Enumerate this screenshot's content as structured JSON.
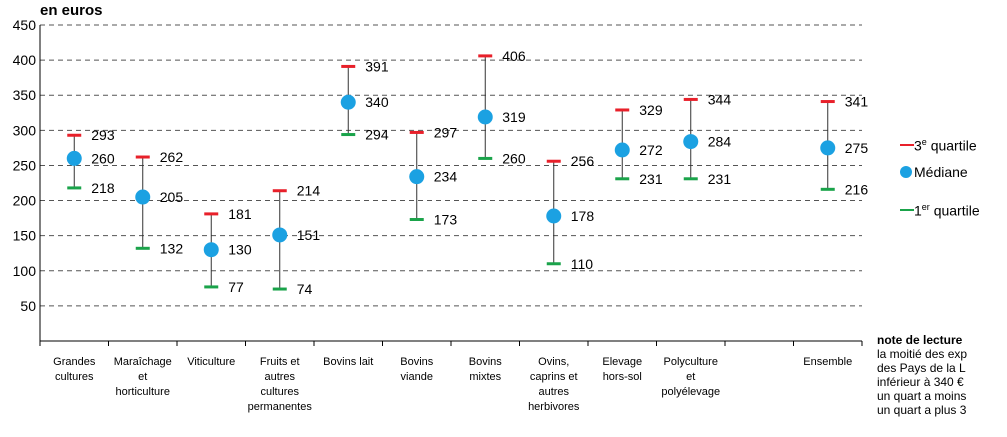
{
  "unit_label": "en euros",
  "colors": {
    "q3": "#e8202a",
    "median": "#1ba1e2",
    "q1": "#1aa34a",
    "whisker": "#333333",
    "grid": "#555555"
  },
  "legend": {
    "q3_label": "3",
    "q3_sup": "e",
    "q3_suffix": " quartile",
    "median_label": "Médiane",
    "q1_label": "1",
    "q1_sup": "er",
    "q1_suffix": " quartile"
  },
  "note": {
    "title": "note de lecture",
    "lines": [
      "la moitié des exp",
      "des Pays de la L",
      "inférieur à 340 €",
      "un quart a moins",
      "un quart a plus 3"
    ]
  },
  "chart_data": {
    "type": "boxplot",
    "ylabel": "en euros",
    "ylim": [
      0,
      450
    ],
    "yticks": [
      50,
      100,
      150,
      200,
      250,
      300,
      350,
      400,
      450
    ],
    "grid": true,
    "legend_position": "right",
    "categories": [
      [
        "Grandes",
        "cultures"
      ],
      [
        "Maraîchage",
        "et",
        "horticulture"
      ],
      [
        "Viticulture"
      ],
      [
        "Fruits et",
        "autres",
        "cultures",
        "permanentes"
      ],
      [
        "Bovins lait"
      ],
      [
        "Bovins",
        "viande"
      ],
      [
        "Bovins",
        "mixtes"
      ],
      [
        "Ovins,",
        "caprins et",
        "autres",
        "herbivores"
      ],
      [
        "Elevage",
        "hors-sol"
      ],
      [
        "Polyculture",
        "et",
        "polyélevage"
      ],
      [],
      [
        "Ensemble"
      ]
    ],
    "series": [
      {
        "name": "3e quartile",
        "values": [
          293,
          262,
          181,
          214,
          391,
          297,
          406,
          256,
          329,
          344,
          null,
          341
        ]
      },
      {
        "name": "Médiane",
        "values": [
          260,
          205,
          130,
          151,
          340,
          234,
          319,
          178,
          272,
          284,
          null,
          275
        ]
      },
      {
        "name": "1er quartile",
        "values": [
          218,
          132,
          77,
          74,
          294,
          173,
          260,
          110,
          231,
          231,
          null,
          216
        ]
      }
    ]
  }
}
